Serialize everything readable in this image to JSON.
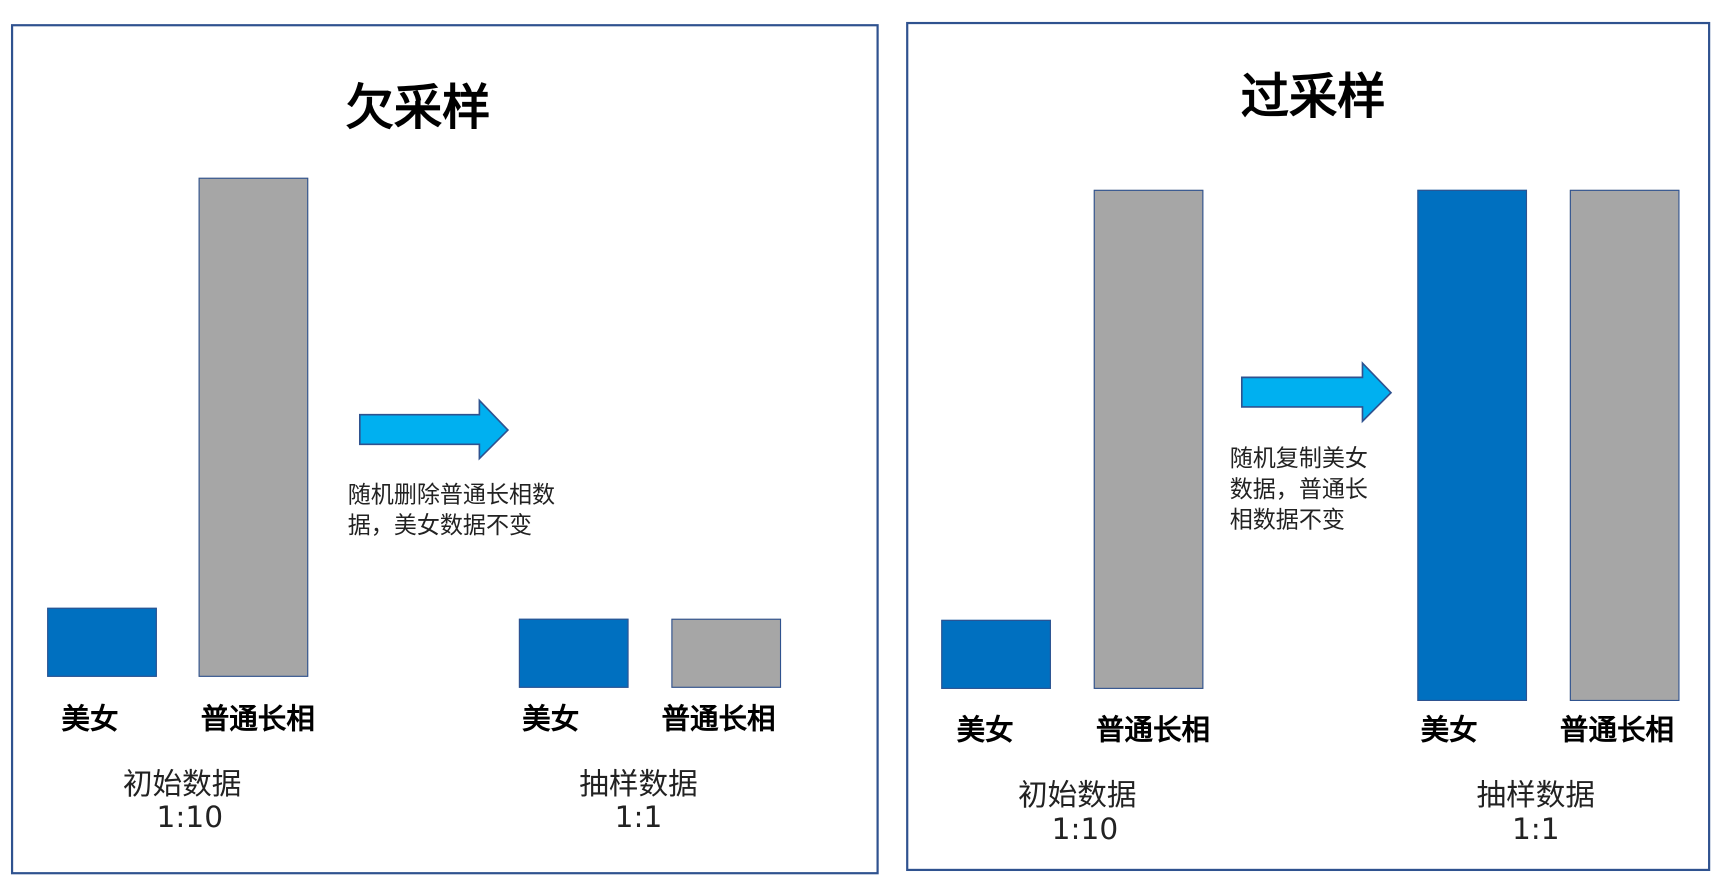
{
  "colors": {
    "minority_bar": "#0070C0",
    "majority_bar": "#A6A6A6",
    "arrow": "#00B0F0",
    "frame": "#2F528F"
  },
  "undersampling": {
    "title": "欠采样",
    "bar_labels": {
      "minority": "美女",
      "majority": "普通长相"
    },
    "initial": {
      "caption": "初始数据",
      "ratio": "1:10"
    },
    "sampled": {
      "caption": "抽样数据",
      "ratio": "1:1"
    },
    "note_lines": [
      "随机删除普通长相数",
      "据，美女数据不变"
    ],
    "arrow_icon": "right-arrow-icon"
  },
  "oversampling": {
    "title": "过采样",
    "bar_labels": {
      "minority": "美女",
      "majority": "普通长相"
    },
    "initial": {
      "caption": "初始数据",
      "ratio": "1:10"
    },
    "sampled": {
      "caption": "抽样数据",
      "ratio": "1:1"
    },
    "note_lines": [
      "随机复制美女",
      "数据，普通长",
      "相数据不变"
    ],
    "arrow_icon": "right-arrow-icon"
  }
}
